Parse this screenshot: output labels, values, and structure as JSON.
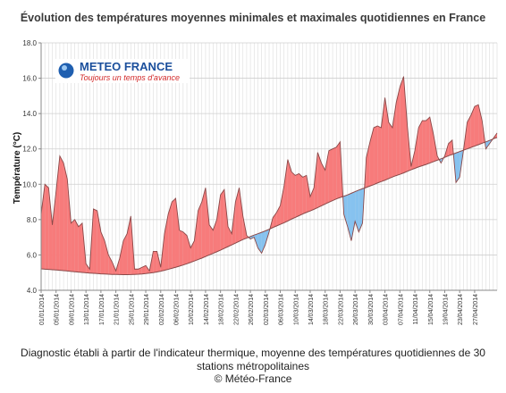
{
  "chart_data": {
    "type": "area",
    "title": "Évolution des températures moyennes minimales et maximales quotidiennes en France",
    "ylabel": "Température (°C)",
    "xlabel": "",
    "ylim": [
      4.0,
      18.0
    ],
    "yticks": [
      "4.0",
      "6.0",
      "8.0",
      "10.0",
      "12.0",
      "14.0",
      "16.0",
      "18.0"
    ],
    "x_tick_labels": [
      "01/01/2014",
      "05/01/2014",
      "09/01/2014",
      "13/01/2014",
      "17/01/2014",
      "21/01/2014",
      "25/01/2014",
      "29/01/2014",
      "02/02/2014",
      "06/02/2014",
      "10/02/2014",
      "14/02/2014",
      "18/02/2014",
      "22/02/2014",
      "26/02/2014",
      "02/03/2014",
      "06/03/2014",
      "10/03/2014",
      "14/03/2014",
      "18/03/2014",
      "22/03/2014",
      "26/03/2014",
      "30/03/2014",
      "03/04/2014",
      "07/04/2014",
      "11/04/2014",
      "15/04/2014",
      "19/04/2014",
      "23/04/2014",
      "27/04/2014"
    ],
    "grid": true,
    "colors": {
      "above": "#f77b7b",
      "below": "#86c2ef",
      "line": "#8a4848",
      "grid": "#dcdcdc"
    },
    "series": [
      {
        "name": "",
        "values": [
          8.3,
          10.0,
          9.8,
          7.7,
          9.6,
          11.6,
          11.2,
          10.3,
          7.8,
          8.0,
          7.6,
          7.8,
          5.5,
          5.2,
          8.6,
          8.5,
          7.3,
          6.8,
          6.0,
          5.6,
          5.1,
          5.8,
          6.8,
          7.2,
          8.2,
          5.2,
          5.2,
          5.3,
          5.4,
          5.1,
          6.2,
          6.2,
          5.3,
          7.2,
          8.3,
          9.0,
          9.2,
          7.4,
          7.3,
          7.1,
          6.4,
          6.8,
          8.5,
          9.0,
          9.8,
          7.7,
          7.4,
          8.0,
          9.4,
          9.7,
          7.6,
          7.2,
          9.0,
          9.8,
          8.2,
          7.1,
          6.9,
          7.0,
          6.4,
          6.1,
          6.6,
          7.3,
          8.1,
          8.4,
          8.8,
          9.9,
          11.4,
          10.7,
          10.5,
          10.6,
          10.4,
          10.5,
          9.3,
          9.8,
          11.8,
          11.2,
          10.8,
          11.9,
          12.0,
          12.1,
          12.4,
          8.3,
          7.6,
          6.8,
          7.9,
          7.3,
          7.8,
          11.5,
          12.4,
          13.2,
          13.3,
          13.2,
          14.9,
          13.5,
          13.2,
          14.6,
          15.5,
          16.1,
          13.3,
          11.0,
          11.9,
          13.2,
          13.6,
          13.6,
          13.8,
          12.8,
          11.6,
          11.2,
          11.6,
          12.3,
          12.5,
          10.1,
          10.4,
          11.9,
          13.5,
          13.9,
          14.4,
          14.5,
          13.6,
          12.0,
          12.3,
          12.6,
          12.9
        ]
      },
      {
        "name": "",
        "values": [
          5.21,
          5.195,
          5.18,
          5.165,
          5.15,
          5.13,
          5.11,
          5.09,
          5.07,
          5.05,
          5.03,
          5.01,
          4.99,
          4.975,
          4.96,
          4.945,
          4.93,
          4.92,
          4.91,
          4.9,
          4.895,
          4.89,
          4.885,
          4.885,
          4.89,
          4.9,
          4.91,
          4.925,
          4.945,
          4.975,
          5.0,
          5.035,
          5.08,
          5.13,
          5.185,
          5.245,
          5.3,
          5.365,
          5.43,
          5.5,
          5.58,
          5.66,
          5.74,
          5.82,
          5.91,
          6.0,
          6.09,
          6.18,
          6.27,
          6.37,
          6.47,
          6.57,
          6.67,
          6.77,
          6.87,
          6.955,
          7.04,
          7.125,
          7.2,
          7.28,
          7.36,
          7.45,
          7.55,
          7.64,
          7.73,
          7.82,
          7.92,
          8.03,
          8.12,
          8.22,
          8.32,
          8.41,
          8.49,
          8.58,
          8.68,
          8.78,
          8.88,
          8.98,
          9.075,
          9.17,
          9.25,
          9.32,
          9.4,
          9.49,
          9.58,
          9.67,
          9.75,
          9.82,
          9.9,
          9.98,
          10.07,
          10.15,
          10.23,
          10.32,
          10.41,
          10.49,
          10.56,
          10.64,
          10.73,
          10.82,
          10.9,
          10.98,
          11.05,
          11.12,
          11.2,
          11.28,
          11.36,
          11.44,
          11.52,
          11.61,
          11.69,
          11.77,
          11.85,
          11.93,
          12.0,
          12.08,
          12.16,
          12.24,
          12.32,
          12.4,
          12.48,
          12.57,
          12.65
        ]
      }
    ],
    "annotations": [
      {
        "text": "METEO FRANCE"
      },
      {
        "text": "Toujours un temps d'avance"
      }
    ]
  },
  "caption": {
    "line1": "Diagnostic établi à partir de l'indicateur thermique, moyenne des températures quotidiennes de 30",
    "line2": "stations métropolitaines",
    "line3": "© Météo-France"
  }
}
